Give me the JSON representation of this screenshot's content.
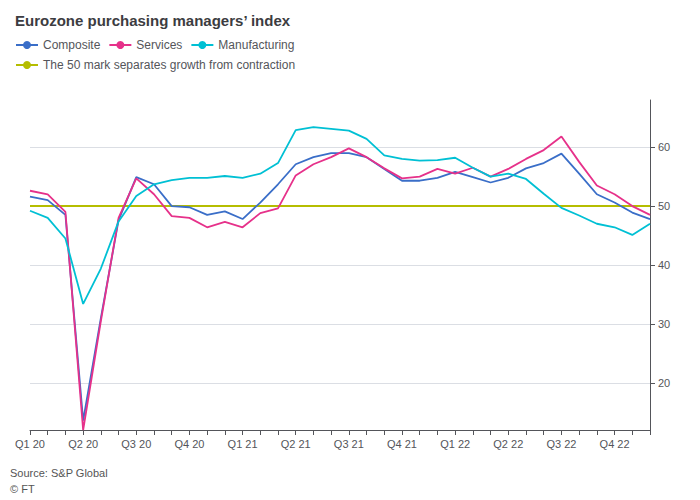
{
  "chart_data": {
    "type": "line",
    "title": "Eurozone purchasing managers’ index",
    "categories": [
      "Q1 20",
      null,
      null,
      "Q2 20",
      null,
      null,
      "Q3 20",
      null,
      null,
      "Q4 20",
      null,
      null,
      "Q1 21",
      null,
      null,
      "Q2 21",
      null,
      null,
      "Q3 21",
      null,
      null,
      "Q4 21",
      null,
      null,
      "Q1 22",
      null,
      null,
      "Q2 22",
      null,
      null,
      "Q3 22",
      null,
      null,
      "Q4 22",
      null,
      null
    ],
    "series": [
      {
        "name": "Composite",
        "color": "#3a6ec8",
        "values": [
          51.6,
          51.0,
          48.5,
          13.6,
          31.0,
          47.6,
          54.9,
          53.7,
          50.0,
          49.8,
          48.5,
          49.1,
          47.8,
          50.6,
          53.7,
          57.1,
          58.3,
          59.0,
          59.0,
          58.3,
          56.3,
          54.3,
          54.3,
          54.8,
          55.8,
          54.9,
          54.0,
          54.8,
          56.4,
          57.3,
          58.9,
          55.5,
          52.0,
          50.6,
          48.9,
          47.8
        ]
      },
      {
        "name": "Services",
        "color": "#e6318a",
        "values": [
          52.6,
          52.0,
          49.0,
          12.0,
          30.5,
          48.0,
          54.7,
          52.0,
          48.3,
          48.0,
          46.4,
          47.3,
          46.4,
          48.8,
          49.6,
          55.2,
          57.1,
          58.3,
          59.8,
          58.3,
          56.4,
          54.7,
          55.0,
          56.3,
          55.5,
          56.5,
          55.0,
          56.3,
          58.0,
          59.5,
          61.8,
          57.5,
          53.5,
          52.0,
          50.0,
          48.5
        ]
      },
      {
        "name": "Manufacturing",
        "color": "#00c0d4",
        "values": [
          49.2,
          48.0,
          44.5,
          33.4,
          39.4,
          47.4,
          51.7,
          53.7,
          54.4,
          54.8,
          54.8,
          55.1,
          54.8,
          55.5,
          57.3,
          62.9,
          63.4,
          63.1,
          62.8,
          61.4,
          58.6,
          58.0,
          57.7,
          57.8,
          58.2,
          56.5,
          55.0,
          55.5,
          54.6,
          52.1,
          49.7,
          48.4,
          47.0,
          46.4,
          45.1,
          47.0
        ]
      },
      {
        "name": "The 50 mark separates growth from contraction",
        "color": "#b5bd00",
        "values": [
          50,
          50,
          50,
          50,
          50,
          50,
          50,
          50,
          50,
          50,
          50,
          50,
          50,
          50,
          50,
          50,
          50,
          50,
          50,
          50,
          50,
          50,
          50,
          50,
          50,
          50,
          50,
          50,
          50,
          50,
          50,
          50,
          50,
          50,
          50,
          50
        ]
      }
    ],
    "ylim": [
      12,
      68
    ],
    "yticks": [
      20,
      30,
      40,
      50,
      60
    ],
    "grid": true,
    "legend": "upper left",
    "annotations": [
      "Source: S&P Global",
      "© FT"
    ]
  }
}
